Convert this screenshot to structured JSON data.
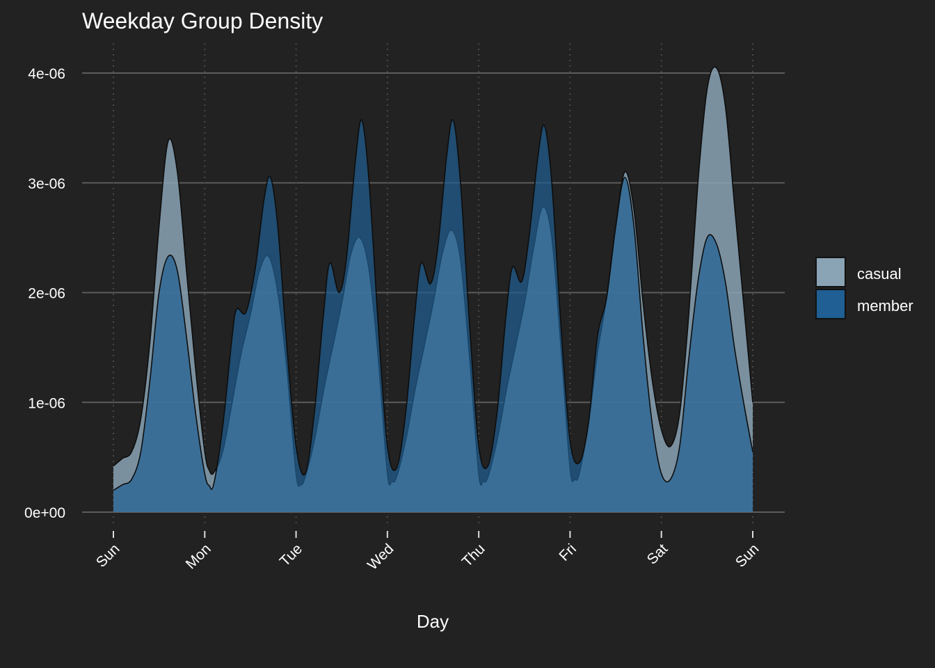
{
  "chart_data": {
    "type": "area",
    "title": "Weekday Group Density",
    "xlabel": "Day",
    "ylabel": "",
    "x_ticks": [
      "Sun",
      "Mon",
      "Tue",
      "Wed",
      "Thu",
      "Fri",
      "Sat",
      "Sun"
    ],
    "xlim": [
      0,
      7
    ],
    "ylim": [
      0,
      4.1e-06
    ],
    "y_ticks": [
      {
        "value": 0,
        "label": "0e+00"
      },
      {
        "value": 1e-06,
        "label": "1e-06"
      },
      {
        "value": 2e-06,
        "label": "2e-06"
      },
      {
        "value": 3e-06,
        "label": "3e-06"
      },
      {
        "value": 4e-06,
        "label": "4e-06"
      }
    ],
    "grid": true,
    "legend": "right",
    "series": [
      {
        "name": "casual",
        "color": "#8aa3b5",
        "points": [
          [
            0,
            4.2e-07
          ],
          [
            0.1,
            4.9e-07
          ],
          [
            0.2,
            5.5e-07
          ],
          [
            0.3,
            8.5e-07
          ],
          [
            0.4,
            1.55e-06
          ],
          [
            0.5,
            2.6e-06
          ],
          [
            0.6,
            3.38e-06
          ],
          [
            0.7,
            3.1e-06
          ],
          [
            0.8,
            2.2e-06
          ],
          [
            0.9,
            1.3e-06
          ],
          [
            1.0,
            5.5e-07
          ],
          [
            1.05,
            3.8e-07
          ],
          [
            1.1,
            3.6e-07
          ],
          [
            1.2,
            5.6e-07
          ],
          [
            1.3,
            1e-06
          ],
          [
            1.4,
            1.45e-06
          ],
          [
            1.5,
            1.8e-06
          ],
          [
            1.6,
            2.2e-06
          ],
          [
            1.7,
            2.33e-06
          ],
          [
            1.8,
            2e-06
          ],
          [
            1.9,
            1.3e-06
          ],
          [
            2.0,
            3.5e-07
          ],
          [
            2.05,
            2.5e-07
          ],
          [
            2.1,
            3.2e-07
          ],
          [
            2.2,
            6.5e-07
          ],
          [
            2.3,
            1.1e-06
          ],
          [
            2.4,
            1.5e-06
          ],
          [
            2.5,
            1.9e-06
          ],
          [
            2.6,
            2.35e-06
          ],
          [
            2.7,
            2.5e-06
          ],
          [
            2.8,
            2.2e-06
          ],
          [
            2.9,
            1.4e-06
          ],
          [
            3.0,
            3.5e-07
          ],
          [
            3.05,
            2.8e-07
          ],
          [
            3.1,
            3.2e-07
          ],
          [
            3.2,
            6.5e-07
          ],
          [
            3.3,
            1.1e-06
          ],
          [
            3.4,
            1.5e-06
          ],
          [
            3.5,
            1.9e-06
          ],
          [
            3.6,
            2.35e-06
          ],
          [
            3.7,
            2.57e-06
          ],
          [
            3.8,
            2.3e-06
          ],
          [
            3.9,
            1.4e-06
          ],
          [
            4.0,
            3.5e-07
          ],
          [
            4.05,
            2.8e-07
          ],
          [
            4.1,
            3.2e-07
          ],
          [
            4.2,
            6.5e-07
          ],
          [
            4.3,
            1.1e-06
          ],
          [
            4.4,
            1.5e-06
          ],
          [
            4.5,
            1.9e-06
          ],
          [
            4.6,
            2.4e-06
          ],
          [
            4.7,
            2.78e-06
          ],
          [
            4.8,
            2.5e-06
          ],
          [
            4.9,
            1.5e-06
          ],
          [
            5.0,
            4e-07
          ],
          [
            5.05,
            3e-07
          ],
          [
            5.1,
            3.5e-07
          ],
          [
            5.2,
            8e-07
          ],
          [
            5.3,
            1.45e-06
          ],
          [
            5.4,
            1.95e-06
          ],
          [
            5.5,
            2.6e-06
          ],
          [
            5.6,
            3.1e-06
          ],
          [
            5.7,
            2.75e-06
          ],
          [
            5.8,
            1.9e-06
          ],
          [
            5.9,
            1.2e-06
          ],
          [
            6.0,
            7.5e-07
          ],
          [
            6.1,
            6e-07
          ],
          [
            6.2,
            9e-07
          ],
          [
            6.3,
            1.8e-06
          ],
          [
            6.4,
            3e-06
          ],
          [
            6.5,
            3.85e-06
          ],
          [
            6.6,
            4.05e-06
          ],
          [
            6.7,
            3.7e-06
          ],
          [
            6.8,
            2.8e-06
          ],
          [
            6.9,
            1.9e-06
          ],
          [
            7.0,
            1e-06
          ]
        ]
      },
      {
        "name": "member",
        "color": "#1f5f93",
        "points": [
          [
            0,
            2e-07
          ],
          [
            0.1,
            2.5e-07
          ],
          [
            0.2,
            3e-07
          ],
          [
            0.3,
            5.5e-07
          ],
          [
            0.4,
            1.2e-06
          ],
          [
            0.5,
            2e-06
          ],
          [
            0.6,
            2.33e-06
          ],
          [
            0.7,
            2.2e-06
          ],
          [
            0.8,
            1.6e-06
          ],
          [
            0.9,
            9e-07
          ],
          [
            1.0,
            3.5e-07
          ],
          [
            1.05,
            2.4e-07
          ],
          [
            1.1,
            2.6e-07
          ],
          [
            1.2,
            8e-07
          ],
          [
            1.3,
            1.6e-06
          ],
          [
            1.35,
            1.85e-06
          ],
          [
            1.45,
            1.82e-06
          ],
          [
            1.55,
            2.2e-06
          ],
          [
            1.65,
            2.85e-06
          ],
          [
            1.72,
            3.05e-06
          ],
          [
            1.8,
            2.6e-06
          ],
          [
            1.9,
            1.5e-06
          ],
          [
            2.0,
            6e-07
          ],
          [
            2.1,
            3.5e-07
          ],
          [
            2.2,
            9e-07
          ],
          [
            2.3,
            1.8e-06
          ],
          [
            2.37,
            2.27e-06
          ],
          [
            2.47,
            2e-06
          ],
          [
            2.55,
            2.3e-06
          ],
          [
            2.65,
            3.2e-06
          ],
          [
            2.72,
            3.57e-06
          ],
          [
            2.8,
            3e-06
          ],
          [
            2.9,
            1.7e-06
          ],
          [
            3.0,
            6e-07
          ],
          [
            3.1,
            4e-07
          ],
          [
            3.2,
            9e-07
          ],
          [
            3.3,
            1.8e-06
          ],
          [
            3.37,
            2.27e-06
          ],
          [
            3.47,
            2.08e-06
          ],
          [
            3.55,
            2.4e-06
          ],
          [
            3.65,
            3.25e-06
          ],
          [
            3.72,
            3.57e-06
          ],
          [
            3.8,
            3e-06
          ],
          [
            3.9,
            1.7e-06
          ],
          [
            4.0,
            6e-07
          ],
          [
            4.1,
            4.2e-07
          ],
          [
            4.2,
            9e-07
          ],
          [
            4.3,
            1.8e-06
          ],
          [
            4.37,
            2.23e-06
          ],
          [
            4.47,
            2.1e-06
          ],
          [
            4.55,
            2.5e-06
          ],
          [
            4.65,
            3.25e-06
          ],
          [
            4.72,
            3.52e-06
          ],
          [
            4.8,
            3e-06
          ],
          [
            4.9,
            1.7e-06
          ],
          [
            5.0,
            6.5e-07
          ],
          [
            5.1,
            4.5e-07
          ],
          [
            5.2,
            8e-07
          ],
          [
            5.3,
            1.6e-06
          ],
          [
            5.4,
            1.95e-06
          ],
          [
            5.5,
            2.6e-06
          ],
          [
            5.6,
            3.05e-06
          ],
          [
            5.7,
            2.6e-06
          ],
          [
            5.8,
            1.6e-06
          ],
          [
            5.9,
            8e-07
          ],
          [
            6.0,
            3.5e-07
          ],
          [
            6.1,
            3e-07
          ],
          [
            6.2,
            6e-07
          ],
          [
            6.3,
            1.4e-06
          ],
          [
            6.4,
            2.1e-06
          ],
          [
            6.5,
            2.5e-06
          ],
          [
            6.6,
            2.45e-06
          ],
          [
            6.7,
            2.1e-06
          ],
          [
            6.8,
            1.5e-06
          ],
          [
            6.9,
            1e-06
          ],
          [
            7.0,
            5.5e-07
          ]
        ]
      }
    ]
  }
}
